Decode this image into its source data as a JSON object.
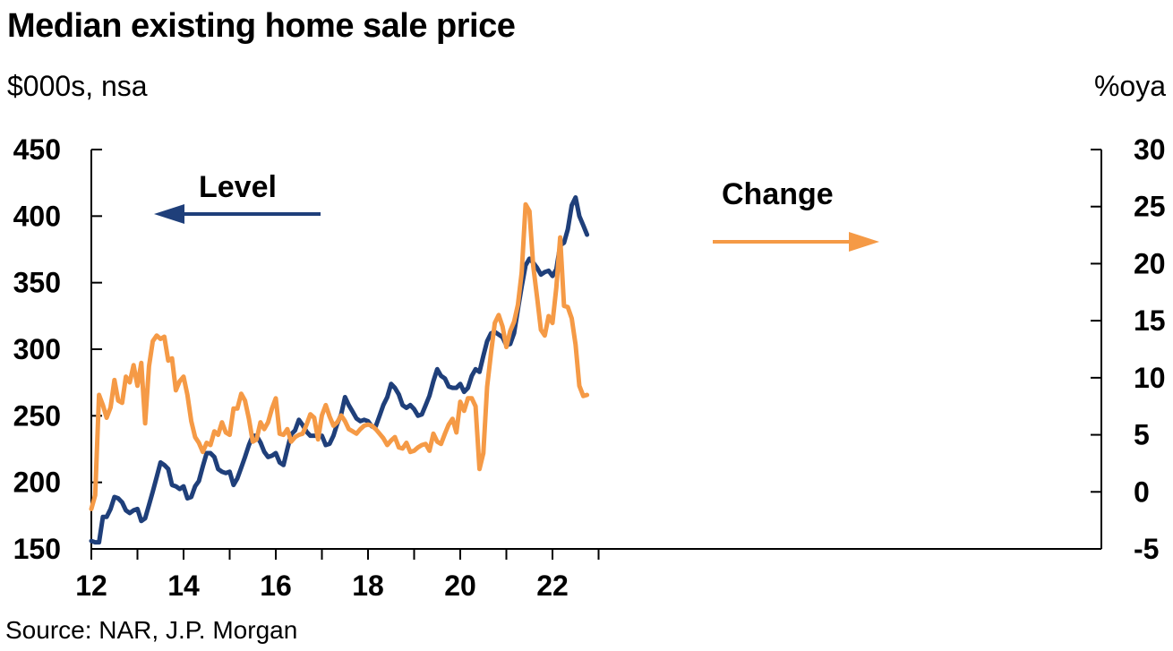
{
  "title": "Median existing home sale price",
  "left_unit": "$000s, nsa",
  "right_unit": "%oya",
  "source": "Source: NAR, J.P. Morgan",
  "colors": {
    "level": "#1f3f7a",
    "change": "#f59a46",
    "axis": "#000000"
  },
  "chart_data": {
    "type": "line",
    "title": "Median existing home sale price",
    "x_ticks": [
      {
        "value": 2012,
        "label": "12"
      },
      {
        "value": 2014,
        "label": "14"
      },
      {
        "value": 2016,
        "label": "16"
      },
      {
        "value": 2018,
        "label": "18"
      },
      {
        "value": 2020,
        "label": "20"
      },
      {
        "value": 2022,
        "label": "22"
      }
    ],
    "xlim": [
      2012,
      2023.25
    ],
    "y_left": {
      "label": "$000s, nsa",
      "lim": [
        150,
        450
      ],
      "ticks": [
        150,
        200,
        250,
        300,
        350,
        400,
        450
      ]
    },
    "y_right": {
      "label": "%oya",
      "lim": [
        -5,
        30
      ],
      "ticks": [
        -5,
        0,
        5,
        10,
        15,
        20,
        25,
        30
      ]
    },
    "annotations": [
      {
        "text": "Level",
        "direction": "left",
        "series": "Level"
      },
      {
        "text": "Change",
        "direction": "right",
        "series": "Change"
      }
    ],
    "grid": false,
    "series": [
      {
        "name": "Level",
        "axis": "left",
        "color": "#1f3f7a",
        "x": [
          2012.0,
          2012.083,
          2012.167,
          2012.25,
          2012.333,
          2012.417,
          2012.5,
          2012.583,
          2012.667,
          2012.75,
          2012.833,
          2012.917,
          2013.0,
          2013.083,
          2013.167,
          2013.25,
          2013.333,
          2013.417,
          2013.5,
          2013.583,
          2013.667,
          2013.75,
          2013.833,
          2013.917,
          2014.0,
          2014.083,
          2014.167,
          2014.25,
          2014.333,
          2014.417,
          2014.5,
          2014.583,
          2014.667,
          2014.75,
          2014.833,
          2014.917,
          2015.0,
          2015.083,
          2015.167,
          2015.25,
          2015.333,
          2015.417,
          2015.5,
          2015.583,
          2015.667,
          2015.75,
          2015.833,
          2015.917,
          2016.0,
          2016.083,
          2016.167,
          2016.25,
          2016.333,
          2016.417,
          2016.5,
          2016.583,
          2016.667,
          2016.75,
          2016.833,
          2016.917,
          2017.0,
          2017.083,
          2017.167,
          2017.25,
          2017.333,
          2017.417,
          2017.5,
          2017.583,
          2017.667,
          2017.75,
          2017.833,
          2017.917,
          2018.0,
          2018.083,
          2018.167,
          2018.25,
          2018.333,
          2018.417,
          2018.5,
          2018.583,
          2018.667,
          2018.75,
          2018.833,
          2018.917,
          2019.0,
          2019.083,
          2019.167,
          2019.25,
          2019.333,
          2019.417,
          2019.5,
          2019.583,
          2019.667,
          2019.75,
          2019.833,
          2019.917,
          2020.0,
          2020.083,
          2020.167,
          2020.25,
          2020.333,
          2020.417,
          2020.5,
          2020.583,
          2020.667,
          2020.75,
          2020.833,
          2020.917,
          2021.0,
          2021.083,
          2021.167,
          2021.25,
          2021.333,
          2021.417,
          2021.5,
          2021.583,
          2021.667,
          2021.75,
          2021.833,
          2021.917,
          2022.0,
          2022.083,
          2022.167,
          2022.25,
          2022.333,
          2022.417,
          2022.5,
          2022.583,
          2022.667,
          2022.75
        ],
        "values": [
          156,
          155,
          155,
          174,
          174,
          180,
          189,
          188,
          185,
          179,
          177,
          179,
          180,
          171,
          173,
          183,
          193,
          204,
          215,
          213,
          210,
          198,
          197,
          195,
          197,
          188,
          189,
          197,
          201,
          212,
          222,
          222,
          219,
          210,
          208,
          207,
          208,
          198,
          203,
          211,
          219,
          228,
          235,
          235,
          230,
          223,
          219,
          220,
          222,
          215,
          213,
          225,
          236,
          239,
          247,
          243,
          238,
          235,
          235,
          235,
          235,
          228,
          229,
          235,
          244,
          251,
          264,
          258,
          253,
          248,
          246,
          247,
          246,
          242,
          242,
          250,
          258,
          264,
          274,
          271,
          266,
          258,
          256,
          258,
          255,
          250,
          251,
          258,
          265,
          276,
          285,
          280,
          278,
          272,
          271,
          271,
          274,
          268,
          271,
          280,
          285,
          283,
          295,
          306,
          312,
          313,
          311,
          309,
          303,
          304,
          312,
          330,
          347,
          363,
          368,
          365,
          361,
          356,
          358,
          359,
          355,
          360,
          378,
          380,
          390,
          408,
          414,
          400,
          393,
          386
        ]
      },
      {
        "name": "Change",
        "axis": "right",
        "color": "#f59a46",
        "x": [
          2012.0,
          2012.083,
          2012.167,
          2012.25,
          2012.333,
          2012.417,
          2012.5,
          2012.583,
          2012.667,
          2012.75,
          2012.833,
          2012.917,
          2013.0,
          2013.083,
          2013.167,
          2013.25,
          2013.333,
          2013.417,
          2013.5,
          2013.583,
          2013.667,
          2013.75,
          2013.833,
          2013.917,
          2014.0,
          2014.083,
          2014.167,
          2014.25,
          2014.333,
          2014.417,
          2014.5,
          2014.583,
          2014.667,
          2014.75,
          2014.833,
          2014.917,
          2015.0,
          2015.083,
          2015.167,
          2015.25,
          2015.333,
          2015.417,
          2015.5,
          2015.583,
          2015.667,
          2015.75,
          2015.833,
          2015.917,
          2016.0,
          2016.083,
          2016.167,
          2016.25,
          2016.333,
          2016.417,
          2016.5,
          2016.583,
          2016.667,
          2016.75,
          2016.833,
          2016.917,
          2017.0,
          2017.083,
          2017.167,
          2017.25,
          2017.333,
          2017.417,
          2017.5,
          2017.583,
          2017.667,
          2017.75,
          2017.833,
          2017.917,
          2018.0,
          2018.083,
          2018.167,
          2018.25,
          2018.333,
          2018.417,
          2018.5,
          2018.583,
          2018.667,
          2018.75,
          2018.833,
          2018.917,
          2019.0,
          2019.083,
          2019.167,
          2019.25,
          2019.333,
          2019.417,
          2019.5,
          2019.583,
          2019.667,
          2019.75,
          2019.833,
          2019.917,
          2020.0,
          2020.083,
          2020.167,
          2020.25,
          2020.333,
          2020.417,
          2020.5,
          2020.583,
          2020.667,
          2020.75,
          2020.833,
          2020.917,
          2021.0,
          2021.083,
          2021.167,
          2021.25,
          2021.333,
          2021.417,
          2021.5,
          2021.583,
          2021.667,
          2021.75,
          2021.833,
          2021.917,
          2022.0,
          2022.083,
          2022.167,
          2022.25,
          2022.333,
          2022.417,
          2022.5,
          2022.583,
          2022.667,
          2022.75
        ],
        "values": [
          -1.5,
          -0.3,
          8.5,
          7.6,
          6.5,
          7.4,
          9.8,
          8.0,
          7.8,
          10.1,
          9.6,
          11.1,
          9.3,
          11.3,
          6.0,
          11.0,
          13.2,
          13.7,
          13.4,
          13.6,
          11.5,
          11.7,
          8.9,
          9.7,
          10.1,
          8.5,
          6.2,
          4.8,
          4.3,
          3.5,
          4.3,
          4.1,
          5.3,
          5.0,
          6.1,
          5.2,
          5.0,
          7.3,
          7.3,
          8.6,
          8.0,
          6.4,
          4.4,
          4.6,
          6.1,
          5.5,
          6.1,
          7.3,
          8.2,
          5.1,
          5.0,
          5.5,
          4.4,
          4.8,
          5.0,
          5.1,
          5.9,
          6.8,
          6.5,
          4.6,
          6.7,
          7.6,
          6.6,
          5.8,
          6.1,
          6.7,
          6.2,
          5.5,
          5.3,
          5.1,
          5.5,
          5.8,
          5.9,
          5.8,
          5.5,
          5.1,
          4.7,
          4.1,
          4.5,
          4.8,
          3.9,
          3.8,
          4.3,
          3.5,
          3.6,
          3.9,
          4.1,
          4.2,
          3.6,
          5.1,
          4.4,
          4.2,
          5.1,
          5.9,
          6.4,
          5.2,
          7.9,
          7.1,
          8.2,
          8.2,
          7.5,
          2.0,
          3.4,
          9.2,
          12.2,
          14.8,
          15.5,
          14.5,
          12.7,
          14.1,
          14.9,
          16.4,
          19.2,
          25.2,
          24.6,
          19.8,
          17.0,
          14.2,
          13.7,
          15.4,
          14.8,
          17.9,
          22.3,
          16.3,
          16.2,
          15.2,
          12.9,
          9.3,
          8.4,
          8.5
        ]
      }
    ]
  }
}
